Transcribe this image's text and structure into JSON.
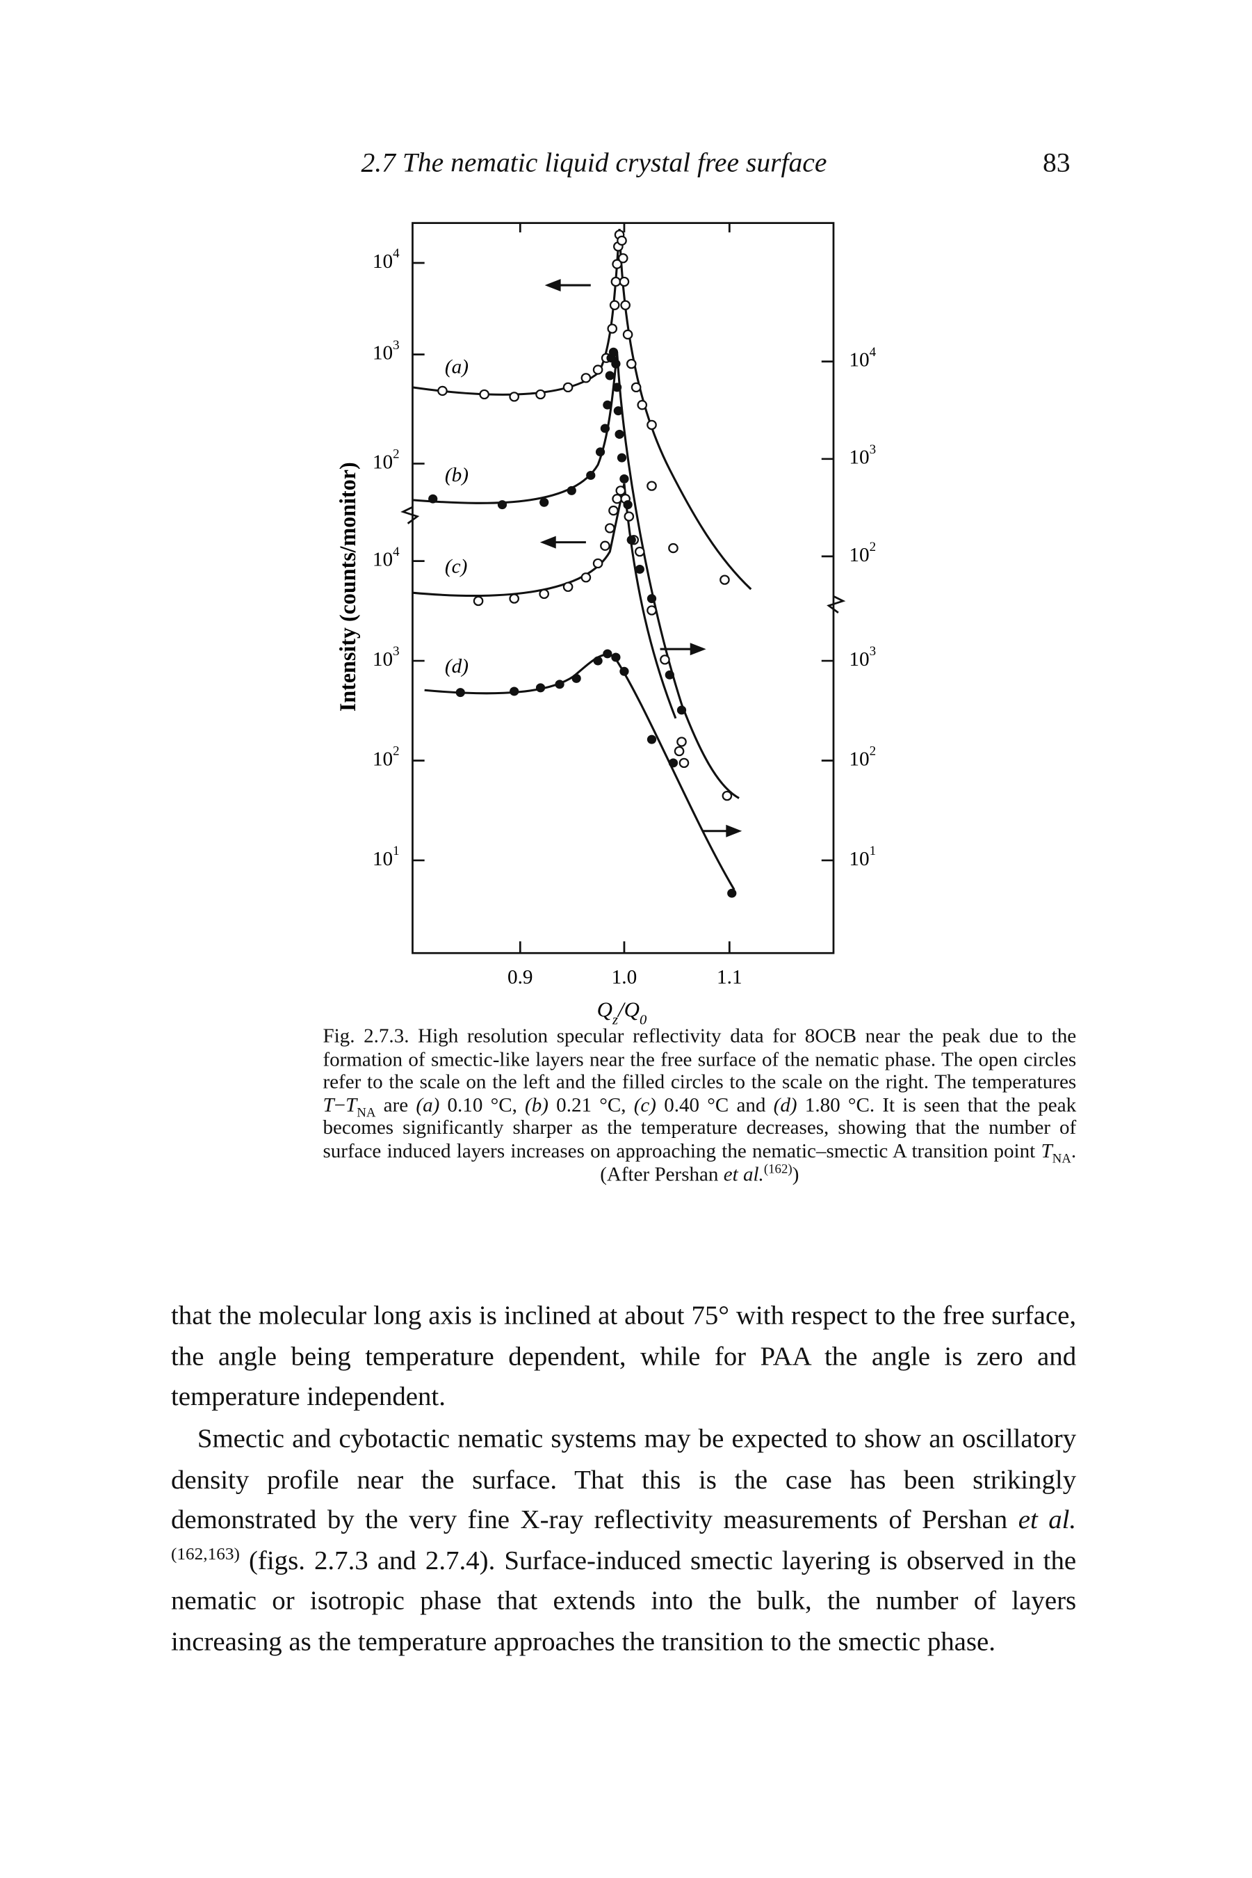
{
  "header": {
    "title": "2.7 The nematic liquid crystal free surface",
    "page": "83"
  },
  "figure": {
    "y_label": "Intensity (counts/monitor)",
    "x_label": [
      {
        "text": "Q",
        "style": "italic"
      },
      {
        "text": "z",
        "style": "sub"
      },
      {
        "text": "/",
        "style": "italic"
      },
      {
        "text": "Q",
        "style": "italic"
      },
      {
        "text": "0",
        "style": "sub"
      }
    ],
    "left_ticks": [
      {
        "base": "10",
        "exp": "4"
      },
      {
        "base": "10",
        "exp": "3"
      },
      {
        "base": "10",
        "exp": "2"
      },
      {
        "base": "10",
        "exp": "4"
      },
      {
        "base": "10",
        "exp": "3"
      },
      {
        "base": "10",
        "exp": "2"
      },
      {
        "base": "10",
        "exp": "1"
      }
    ],
    "right_ticks": [
      {
        "base": "10",
        "exp": "4"
      },
      {
        "base": "10",
        "exp": "3"
      },
      {
        "base": "10",
        "exp": "2"
      },
      {
        "base": "10",
        "exp": "3"
      },
      {
        "base": "10",
        "exp": "2"
      },
      {
        "base": "10",
        "exp": "1"
      }
    ],
    "x_ticks": [
      "0.9",
      "1.0",
      "1.1"
    ],
    "curve_labels": [
      "(a)",
      "(b)",
      "(c)",
      "(d)"
    ]
  },
  "caption": [
    {
      "text": "Fig. 2.7.3. High resolution specular reflectivity data for 8OCB near the peak due to the formation of smectic-like layers near the free surface of the nematic phase. The open circles refer to the scale on the left and the filled circles to the scale on the right. The temperatures "
    },
    {
      "text": "T",
      "style": "italic"
    },
    {
      "text": "−"
    },
    {
      "text": "T",
      "style": "italic"
    },
    {
      "text": "NA",
      "style": "sub"
    },
    {
      "text": " are "
    },
    {
      "text": "(a)",
      "style": "italic"
    },
    {
      "text": " 0.10 °C, "
    },
    {
      "text": "(b)",
      "style": "italic"
    },
    {
      "text": " 0.21 °C, "
    },
    {
      "text": "(c)",
      "style": "italic"
    },
    {
      "text": " 0.40 °C and "
    },
    {
      "text": "(d)",
      "style": "italic"
    },
    {
      "text": " 1.80 °C. It is seen that the peak becomes significantly sharper as the temperature decreases, showing that the number of surface induced layers increases on approaching the nematic–smectic A transition point "
    },
    {
      "text": "T",
      "style": "italic"
    },
    {
      "text": "NA",
      "style": "sub"
    },
    {
      "text": ". (After Pershan "
    },
    {
      "text": "et al.",
      "style": "italic"
    },
    {
      "text": "(162)",
      "style": "sup"
    },
    {
      "text": ")"
    }
  ],
  "paragraphs": [
    [
      {
        "text": "that the molecular long axis is inclined at about 75° with respect to the free surface, the angle being temperature dependent, while for PAA the angle is zero and temperature independent."
      }
    ],
    [
      {
        "text": "Smectic and cybotactic nematic systems may be expected to show an oscillatory density profile near the surface. That this is the case has been strikingly demonstrated by the very fine X-ray reflectivity measurements of Pershan "
      },
      {
        "text": "et al.",
        "style": "italic"
      },
      {
        "text": "(162,163)",
        "style": "sup"
      },
      {
        "text": " (figs. 2.7.3 and 2.7.4). Surface-induced smectic layering is observed in the nematic or isotropic phase that extends into the bulk, the number of layers increasing as the temperature approaches the transition to the smectic phase."
      }
    ]
  ]
}
